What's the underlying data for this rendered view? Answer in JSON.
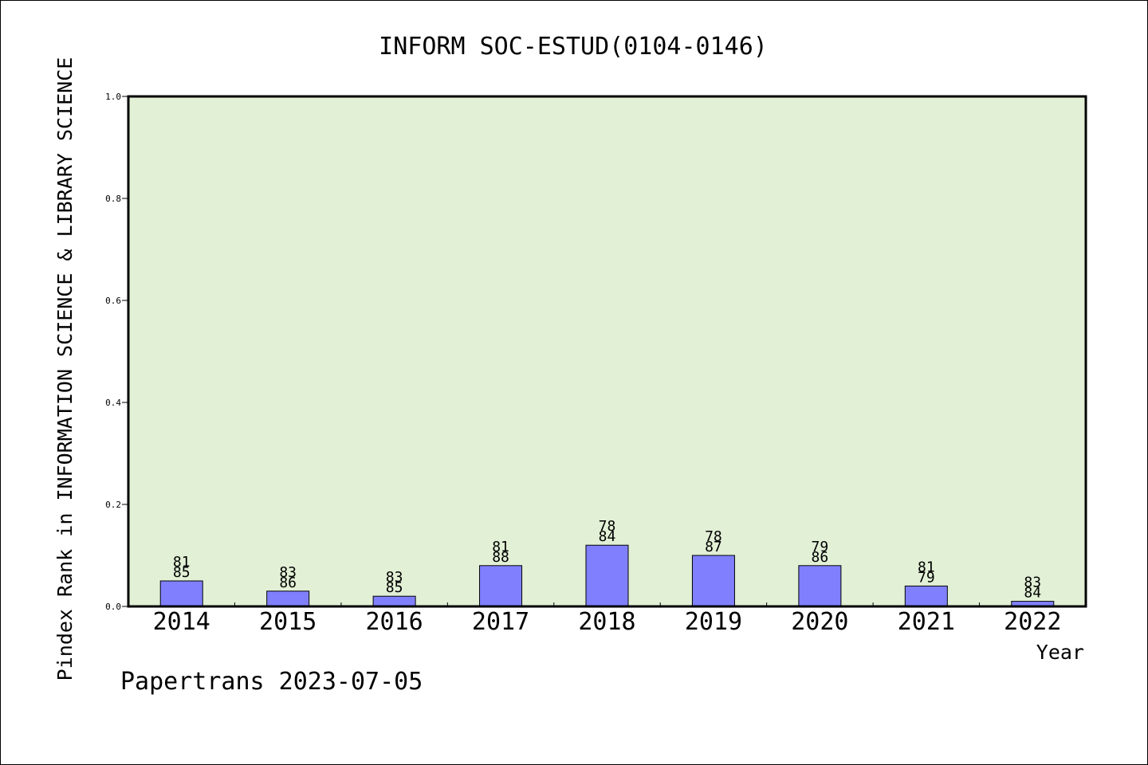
{
  "chart_data": {
    "type": "bar",
    "title": "INFORM SOC-ESTUD(0104-0146)",
    "xlabel": "Year",
    "ylabel": "Pindex Rank in INFORMATION SCIENCE & LIBRARY SCIENCE",
    "categories": [
      "2014",
      "2015",
      "2016",
      "2017",
      "2018",
      "2019",
      "2020",
      "2021",
      "2022"
    ],
    "values": [
      0.05,
      0.03,
      0.02,
      0.08,
      0.12,
      0.1,
      0.08,
      0.04,
      0.01
    ],
    "bar_labels_top": [
      "81",
      "83",
      "83",
      "81",
      "78",
      "78",
      "79",
      "81",
      "83"
    ],
    "bar_labels_bottom": [
      "85",
      "86",
      "85",
      "88",
      "84",
      "87",
      "86",
      "79",
      "84"
    ],
    "ylim": [
      0,
      1.0
    ],
    "yticks": [
      "0.0",
      "0.2",
      "0.4",
      "0.6",
      "0.8",
      "1.0"
    ],
    "grid": false,
    "colors": {
      "plot_background": "#e2f0d6",
      "bar_fill": "#8080ff",
      "bar_stroke": "#000000"
    }
  },
  "footer": {
    "credit": "Papertrans 2023-07-05"
  }
}
